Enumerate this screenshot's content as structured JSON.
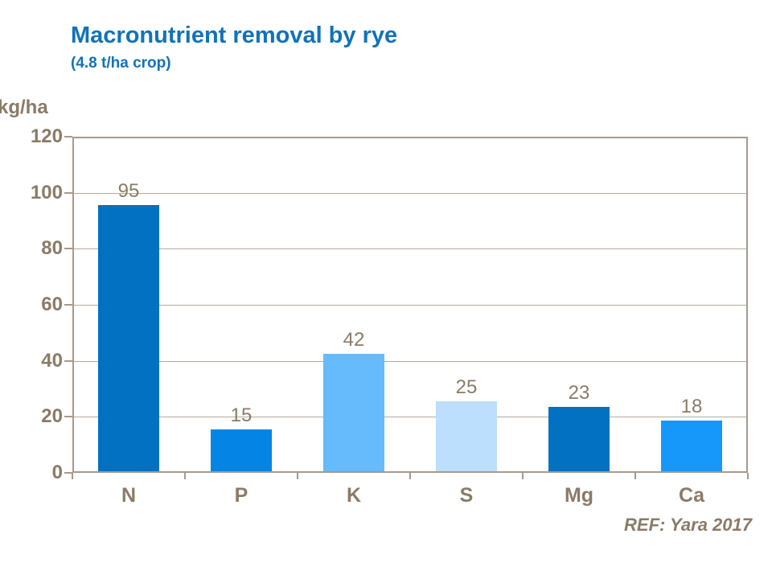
{
  "slide": {
    "title": "Macronutrient removal by rye",
    "subtitle": "(4.8 t/ha crop)",
    "unit_label": "kg/ha",
    "reference": "REF: Yara 2017"
  },
  "colors": {
    "title_blue": "#1272B9",
    "axis_text": "#8A7B67",
    "grid_line": "#B5A99C",
    "axis_border": "#A79A8B"
  },
  "chart_data": {
    "type": "bar",
    "title": "Macronutrient removal by rye",
    "subtitle": "(4.8 t/ha crop)",
    "categories": [
      "N",
      "P",
      "K",
      "S",
      "Mg",
      "Ca"
    ],
    "values": [
      95,
      15,
      42,
      25,
      23,
      18
    ],
    "bar_colors": [
      "#0271C2",
      "#0484E4",
      "#66BBFC",
      "#BBDFFC",
      "#0271C2",
      "#1697FA"
    ],
    "xlabel": "",
    "ylabel": "kg/ha",
    "ylim": [
      0,
      120
    ],
    "ytick_step": 20,
    "yticks": [
      0,
      20,
      40,
      60,
      80,
      100,
      120
    ],
    "grid": true,
    "legend_position": "none",
    "annotation": "REF: Yara 2017"
  }
}
